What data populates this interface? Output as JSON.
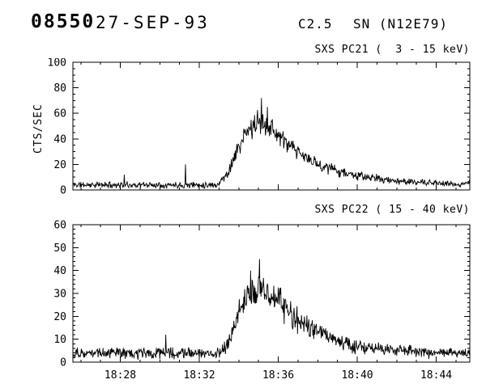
{
  "header": {
    "flare_id": "08550",
    "date": "27-SEP-93",
    "goes_class": "C2.5",
    "location": "SN (N12E79)"
  },
  "chart_data": [
    {
      "type": "line",
      "title": "SXS PC21 (  3 - 15 keV)",
      "ylabel": "CTS/SEC",
      "ylim": [
        0,
        100
      ],
      "ytick_step": 20,
      "yminor_step": 5,
      "x_range": [
        25.6,
        45.7
      ],
      "x_unit": "minutes after 18:00 UT",
      "xticks": [
        28,
        32,
        36,
        40,
        44
      ],
      "xtick_labels": [
        "18:28",
        "18:32",
        "18:36",
        "18:40",
        "18:44"
      ],
      "xminor_step": 1,
      "show_x_labels": false,
      "grid": false,
      "envelope": [
        [
          25.6,
          4,
          3
        ],
        [
          31.0,
          4,
          3
        ],
        [
          32.9,
          4,
          3
        ],
        [
          33.4,
          12,
          5
        ],
        [
          33.9,
          30,
          8
        ],
        [
          34.4,
          45,
          10
        ],
        [
          34.9,
          52,
          11
        ],
        [
          35.3,
          53,
          12
        ],
        [
          35.7,
          48,
          10
        ],
        [
          36.3,
          38,
          9
        ],
        [
          37.0,
          29,
          7
        ],
        [
          38.0,
          20,
          6
        ],
        [
          39.0,
          15,
          5
        ],
        [
          40.0,
          11,
          4
        ],
        [
          41.0,
          9,
          4
        ],
        [
          42.0,
          7,
          3
        ],
        [
          43.0,
          6,
          3
        ],
        [
          44.5,
          5,
          3
        ],
        [
          45.2,
          4,
          2
        ],
        [
          45.7,
          7,
          2
        ]
      ],
      "spikes": [
        [
          28.2,
          12
        ],
        [
          31.3,
          20
        ],
        [
          35.15,
          72
        ],
        [
          35.45,
          65
        ]
      ]
    },
    {
      "type": "line",
      "title": "SXS PC22 ( 15 - 40 keV)",
      "ylabel": "",
      "ylim": [
        0,
        60
      ],
      "ytick_step": 10,
      "yminor_step": 2,
      "x_range": [
        25.6,
        45.7
      ],
      "x_unit": "minutes after 18:00 UT",
      "xticks": [
        28,
        32,
        36,
        40,
        44
      ],
      "xtick_labels": [
        "18:28",
        "18:32",
        "18:36",
        "18:40",
        "18:44"
      ],
      "xminor_step": 1,
      "show_x_labels": true,
      "grid": false,
      "envelope": [
        [
          25.6,
          4,
          3
        ],
        [
          33.0,
          4,
          3
        ],
        [
          33.5,
          8,
          4
        ],
        [
          34.0,
          22,
          7
        ],
        [
          34.5,
          29,
          8
        ],
        [
          35.1,
          31,
          9
        ],
        [
          35.6,
          29,
          8
        ],
        [
          36.2,
          25,
          8
        ],
        [
          37.0,
          18,
          6
        ],
        [
          38.0,
          13,
          5
        ],
        [
          39.0,
          9,
          4
        ],
        [
          40.0,
          7,
          4
        ],
        [
          41.0,
          6,
          3
        ],
        [
          42.5,
          5,
          3
        ],
        [
          44.0,
          4,
          3
        ],
        [
          45.7,
          4,
          2
        ]
      ],
      "spikes": [
        [
          30.3,
          12
        ],
        [
          34.6,
          40
        ],
        [
          35.05,
          45
        ]
      ]
    }
  ]
}
